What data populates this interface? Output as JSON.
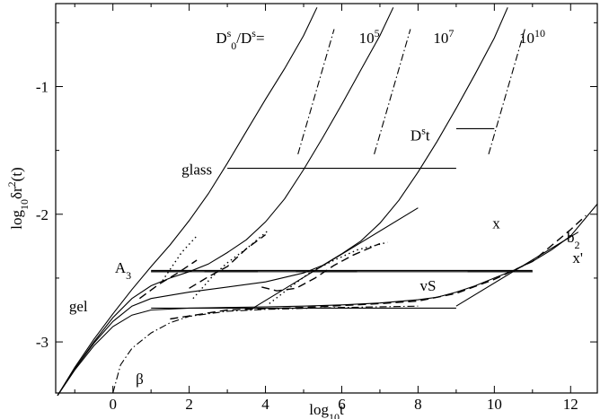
{
  "chart_data": {
    "type": "line",
    "xlabel": {
      "pre": "log",
      "sub": "10",
      "post": "t"
    },
    "ylabel": {
      "pre": "log",
      "sub": "10",
      "mid": "δr",
      "sup": "2",
      "post": "(t)",
      "bar": "~"
    },
    "xlim": [
      -1.5,
      12.7
    ],
    "ylim": [
      -3.4,
      -0.35
    ],
    "xticks": [
      0,
      2,
      4,
      6,
      8,
      10,
      12
    ],
    "yticks": [
      -3,
      -2,
      -1
    ],
    "annotations": [
      {
        "id": "ratio",
        "parts": [
          [
            "D",
            ""
          ],
          [
            "s",
            "sup"
          ],
          [
            "0",
            "sub"
          ],
          [
            "/D",
            ""
          ],
          [
            "s",
            "sup"
          ],
          [
            "=",
            ""
          ]
        ],
        "x": 2.7,
        "y": -0.66
      },
      {
        "id": "r5",
        "parts": [
          [
            "10",
            ""
          ],
          [
            "5",
            "sup"
          ]
        ],
        "x": 6.45,
        "y": -0.66
      },
      {
        "id": "r7",
        "parts": [
          [
            "10",
            ""
          ],
          [
            "7",
            "sup"
          ]
        ],
        "x": 8.4,
        "y": -0.66
      },
      {
        "id": "r10",
        "parts": [
          [
            "10",
            ""
          ],
          [
            "10",
            "sup"
          ]
        ],
        "x": 10.65,
        "y": -0.66
      },
      {
        "id": "dst",
        "parts": [
          [
            "D",
            ""
          ],
          [
            "s",
            "sup"
          ],
          [
            "t",
            ""
          ]
        ],
        "x": 7.8,
        "y": -1.42
      },
      {
        "id": "glass",
        "parts": [
          [
            "glass",
            ""
          ]
        ],
        "x": 1.8,
        "y": -1.69
      },
      {
        "id": "x",
        "parts": [
          [
            "x",
            ""
          ]
        ],
        "x": 9.95,
        "y": -2.11
      },
      {
        "id": "a3",
        "parts": [
          [
            "A",
            ""
          ],
          [
            "3",
            "sub"
          ]
        ],
        "x": 0.05,
        "y": -2.46
      },
      {
        "id": "b2",
        "parts": [
          [
            "b",
            ""
          ],
          [
            "2",
            "sub"
          ]
        ],
        "x": 11.9,
        "y": -2.22
      },
      {
        "id": "xp",
        "parts": [
          [
            "x'",
            ""
          ]
        ],
        "x": 12.05,
        "y": -2.38
      },
      {
        "id": "vs",
        "parts": [
          [
            "vS",
            ""
          ]
        ],
        "x": 8.05,
        "y": -2.6
      },
      {
        "id": "gel",
        "parts": [
          [
            "gel",
            ""
          ]
        ],
        "x": -1.15,
        "y": -2.76
      },
      {
        "id": "beta",
        "parts": [
          [
            "β",
            ""
          ]
        ],
        "x": 0.6,
        "y": -3.33
      }
    ],
    "series": [
      {
        "style": "solid",
        "points": [
          [
            -1.45,
            -3.42
          ],
          [
            -1.0,
            -3.2
          ],
          [
            -0.5,
            -2.98
          ],
          [
            0,
            -2.78
          ],
          [
            0.5,
            -2.59
          ],
          [
            1.0,
            -2.41
          ],
          [
            1.5,
            -2.24
          ],
          [
            2.0,
            -2.05
          ],
          [
            2.5,
            -1.84
          ],
          [
            3.0,
            -1.6
          ],
          [
            3.5,
            -1.35
          ],
          [
            4.0,
            -1.1
          ],
          [
            4.5,
            -0.86
          ],
          [
            5.0,
            -0.6
          ],
          [
            5.35,
            -0.38
          ]
        ]
      },
      {
        "style": "solid",
        "points": [
          [
            -1.45,
            -3.42
          ],
          [
            -1.0,
            -3.21
          ],
          [
            -0.5,
            -3.0
          ],
          [
            0,
            -2.81
          ],
          [
            0.5,
            -2.66
          ],
          [
            1.0,
            -2.56
          ],
          [
            1.5,
            -2.5
          ],
          [
            2.0,
            -2.45
          ],
          [
            2.5,
            -2.39
          ],
          [
            3.0,
            -2.3
          ],
          [
            3.5,
            -2.2
          ],
          [
            4.0,
            -2.06
          ],
          [
            4.5,
            -1.88
          ],
          [
            5.0,
            -1.65
          ],
          [
            5.5,
            -1.4
          ],
          [
            6.0,
            -1.14
          ],
          [
            6.5,
            -0.87
          ],
          [
            7.0,
            -0.6
          ],
          [
            7.35,
            -0.38
          ]
        ]
      },
      {
        "style": "solid",
        "points": [
          [
            -1.45,
            -3.42
          ],
          [
            -1.0,
            -3.21
          ],
          [
            -0.5,
            -3.01
          ],
          [
            0,
            -2.84
          ],
          [
            0.5,
            -2.72
          ],
          [
            1.0,
            -2.66
          ],
          [
            2.0,
            -2.61
          ],
          [
            3.0,
            -2.57
          ],
          [
            4.0,
            -2.53
          ],
          [
            5.0,
            -2.46
          ],
          [
            5.5,
            -2.4
          ],
          [
            6.0,
            -2.31
          ],
          [
            6.5,
            -2.21
          ],
          [
            7.0,
            -2.07
          ],
          [
            7.5,
            -1.89
          ],
          [
            8.0,
            -1.67
          ],
          [
            8.5,
            -1.43
          ],
          [
            9.0,
            -1.17
          ],
          [
            9.5,
            -0.9
          ],
          [
            10.0,
            -0.62
          ],
          [
            10.35,
            -0.38
          ]
        ]
      },
      {
        "style": "solid",
        "points": [
          [
            -1.45,
            -3.42
          ],
          [
            -1.0,
            -3.22
          ],
          [
            -0.5,
            -3.03
          ],
          [
            0,
            -2.88
          ],
          [
            0.5,
            -2.79
          ],
          [
            1.0,
            -2.75
          ],
          [
            2.0,
            -2.735
          ],
          [
            3.0,
            -2.73
          ],
          [
            4.0,
            -2.725
          ],
          [
            5.0,
            -2.72
          ],
          [
            6.0,
            -2.71
          ],
          [
            7.0,
            -2.695
          ],
          [
            8.0,
            -2.67
          ],
          [
            8.5,
            -2.65
          ],
          [
            9.0,
            -2.61
          ],
          [
            9.5,
            -2.56
          ],
          [
            10.0,
            -2.5
          ],
          [
            10.5,
            -2.44
          ],
          [
            11.0,
            -2.37
          ],
          [
            11.5,
            -2.28
          ],
          [
            12.0,
            -2.17
          ],
          [
            12.7,
            -1.92
          ]
        ]
      },
      {
        "style": "dashdot",
        "points": [
          [
            0,
            -3.4
          ],
          [
            0.2,
            -3.18
          ],
          [
            0.5,
            -3.05
          ],
          [
            1.0,
            -2.93
          ],
          [
            1.5,
            -2.85
          ],
          [
            2.0,
            -2.8
          ],
          [
            3.0,
            -2.76
          ],
          [
            4.0,
            -2.745
          ],
          [
            6.0,
            -2.73
          ],
          [
            8.0,
            -2.72
          ]
        ]
      },
      {
        "style": "dashdot",
        "points": [
          [
            4.85,
            -1.53
          ],
          [
            5.8,
            -0.55
          ]
        ]
      },
      {
        "style": "dashdot",
        "points": [
          [
            6.85,
            -1.53
          ],
          [
            7.8,
            -0.55
          ]
        ]
      },
      {
        "style": "dashdot",
        "points": [
          [
            9.85,
            -1.53
          ],
          [
            10.8,
            -0.55
          ]
        ]
      },
      {
        "style": "dash",
        "points": [
          [
            0.7,
            -2.66
          ],
          [
            1.2,
            -2.55
          ],
          [
            1.7,
            -2.46
          ],
          [
            2.2,
            -2.36
          ]
        ]
      },
      {
        "style": "dot",
        "points": [
          [
            1.3,
            -2.52
          ],
          [
            1.8,
            -2.3
          ],
          [
            2.2,
            -2.17
          ]
        ]
      },
      {
        "style": "dash",
        "points": [
          [
            2.0,
            -2.58
          ],
          [
            2.5,
            -2.49
          ],
          [
            3.0,
            -2.41
          ],
          [
            3.5,
            -2.27
          ],
          [
            4.0,
            -2.16
          ]
        ]
      },
      {
        "style": "dot",
        "points": [
          [
            2.1,
            -2.66
          ],
          [
            2.6,
            -2.49
          ],
          [
            3.0,
            -2.38
          ],
          [
            3.5,
            -2.27
          ],
          [
            4.1,
            -2.12
          ]
        ]
      },
      {
        "style": "dash",
        "points": [
          [
            3.9,
            -2.57
          ],
          [
            4.3,
            -2.6
          ],
          [
            4.8,
            -2.58
          ],
          [
            5.3,
            -2.5
          ],
          [
            5.8,
            -2.4
          ],
          [
            6.3,
            -2.32
          ],
          [
            7.0,
            -2.23
          ]
        ]
      },
      {
        "style": "dot",
        "points": [
          [
            4.1,
            -2.7
          ],
          [
            4.7,
            -2.56
          ],
          [
            5.2,
            -2.45
          ],
          [
            5.8,
            -2.36
          ],
          [
            6.4,
            -2.28
          ],
          [
            7.2,
            -2.22
          ]
        ]
      },
      {
        "style": "dash",
        "points": [
          [
            1.5,
            -2.82
          ],
          [
            3.0,
            -2.75
          ],
          [
            5.0,
            -2.73
          ],
          [
            7.0,
            -2.7
          ],
          [
            8.0,
            -2.68
          ],
          [
            9.0,
            -2.62
          ],
          [
            10.0,
            -2.51
          ],
          [
            11.0,
            -2.37
          ],
          [
            11.6,
            -2.22
          ],
          [
            12.0,
            -2.12
          ],
          [
            12.4,
            -2.01
          ]
        ]
      },
      {
        "style": "solid",
        "points": [
          [
            3.7,
            -2.73
          ],
          [
            8.0,
            -1.95
          ]
        ]
      },
      {
        "style": "solid",
        "points": [
          [
            9.0,
            -2.72
          ],
          [
            12.2,
            -2.14
          ]
        ]
      },
      {
        "style": "solid",
        "points": [
          [
            3.0,
            -1.64
          ],
          [
            9.0,
            -1.64
          ]
        ]
      },
      {
        "style": "solid",
        "points": [
          [
            1.0,
            -2.735
          ],
          [
            9.0,
            -2.735
          ]
        ]
      },
      {
        "style": "solid",
        "points": [
          [
            1.0,
            -2.44
          ],
          [
            11.0,
            -2.44
          ]
        ]
      },
      {
        "style": "solid",
        "points": [
          [
            1.0,
            -2.45
          ],
          [
            11.0,
            -2.45
          ]
        ]
      },
      {
        "style": "solid",
        "points": [
          [
            1.0,
            -2.45
          ],
          [
            2.0,
            -2.45
          ]
        ]
      },
      {
        "style": "solid",
        "points": [
          [
            2.4,
            -2.45
          ],
          [
            3.8,
            -2.45
          ]
        ]
      },
      {
        "style": "solid",
        "points": [
          [
            4.8,
            -2.45
          ],
          [
            6.4,
            -2.45
          ]
        ]
      },
      {
        "style": "solid",
        "points": [
          [
            9.3,
            -2.45
          ],
          [
            11.0,
            -2.45
          ]
        ]
      },
      {
        "style": "solid",
        "points": [
          [
            9.0,
            -1.33
          ],
          [
            10.0,
            -1.33
          ]
        ]
      }
    ]
  }
}
